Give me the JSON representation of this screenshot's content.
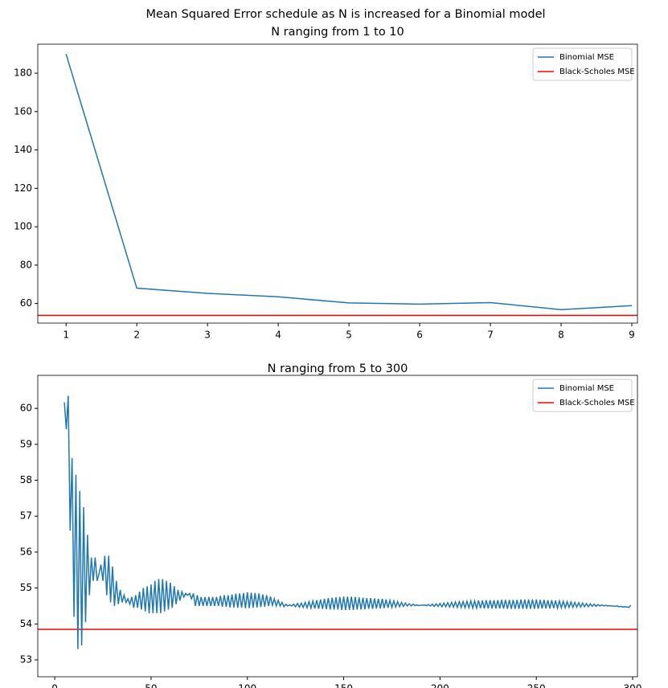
{
  "title": "Mean Squared Error schedule as N is increased for a Binomial model",
  "chart_data": [
    {
      "type": "line",
      "title": "N ranging from 1 to 10",
      "x": [
        1,
        2,
        3,
        4,
        5,
        6,
        7,
        8,
        9
      ],
      "series": [
        {
          "name": "Binomial MSE",
          "color": "#1f77b4",
          "values": [
            190,
            68,
            65.3,
            63.5,
            60.3,
            59.7,
            60.5,
            56.8,
            58.9
          ]
        }
      ],
      "hline": {
        "name": "Black-Scholes MSE",
        "color": "#ff0000",
        "value": 53.85
      },
      "xlim": [
        0.6,
        9.08
      ],
      "ylim": [
        49.8,
        195.1
      ],
      "xticks": [
        1,
        2,
        3,
        4,
        5,
        6,
        7,
        8,
        9
      ],
      "yticks": [
        60,
        80,
        100,
        120,
        140,
        160,
        180
      ],
      "legend": "upper right"
    },
    {
      "type": "line",
      "title": "N ranging from 5 to 300",
      "x": [
        5,
        6,
        7,
        8,
        9,
        10,
        11,
        12,
        13,
        14,
        15,
        16,
        17,
        18,
        19,
        20,
        21,
        22,
        23,
        24,
        25,
        26,
        27,
        28,
        29,
        30,
        31,
        32,
        33,
        34,
        35,
        36,
        37,
        38,
        39,
        40,
        41,
        42,
        43,
        44,
        45,
        46,
        47,
        48,
        49,
        50,
        51,
        52,
        53,
        54,
        55,
        56,
        57,
        58,
        59,
        60,
        61,
        62,
        63,
        64,
        65,
        66,
        67,
        68,
        69,
        70,
        71,
        72,
        73,
        74,
        75,
        76,
        77,
        78,
        79,
        80,
        81,
        82,
        83,
        84,
        85,
        86,
        87,
        88,
        89,
        90,
        91,
        92,
        93,
        94,
        95,
        96,
        97,
        98,
        99,
        100,
        101,
        102,
        103,
        104,
        105,
        106,
        107,
        108,
        109,
        110,
        111,
        112,
        113,
        114,
        115,
        116,
        117,
        118,
        119,
        120,
        121,
        122,
        123,
        124,
        125,
        126,
        127,
        128,
        129,
        130,
        131,
        132,
        133,
        134,
        135,
        136,
        137,
        138,
        139,
        140,
        141,
        142,
        143,
        144,
        145,
        146,
        147,
        148,
        149,
        150,
        151,
        152,
        153,
        154,
        155,
        156,
        157,
        158,
        159,
        160,
        161,
        162,
        163,
        164,
        165,
        166,
        167,
        168,
        169,
        170,
        171,
        172,
        173,
        174,
        175,
        176,
        177,
        178,
        179,
        180,
        181,
        182,
        183,
        184,
        185,
        186,
        187,
        188,
        189,
        190,
        191,
        192,
        193,
        194,
        195,
        196,
        197,
        198,
        199,
        200,
        201,
        202,
        203,
        204,
        205,
        206,
        207,
        208,
        209,
        210,
        211,
        212,
        213,
        214,
        215,
        216,
        217,
        218,
        219,
        220,
        221,
        222,
        223,
        224,
        225,
        226,
        227,
        228,
        229,
        230,
        231,
        232,
        233,
        234,
        235,
        236,
        237,
        238,
        239,
        240,
        241,
        242,
        243,
        244,
        245,
        246,
        247,
        248,
        249,
        250,
        251,
        252,
        253,
        254,
        255,
        256,
        257,
        258,
        259,
        260,
        261,
        262,
        263,
        264,
        265,
        266,
        267,
        268,
        269,
        270,
        271,
        272,
        273,
        274,
        275,
        276,
        277,
        278,
        279,
        280,
        281,
        282,
        283,
        284,
        285,
        286,
        287,
        288,
        289,
        290,
        291,
        292,
        293,
        294,
        295,
        296,
        297,
        298,
        299
      ],
      "series": [
        {
          "name": "Binomial MSE",
          "color": "#1f77b4",
          "values": [
            60.17,
            59.42,
            60.35,
            56.6,
            58.62,
            54.2,
            58.15,
            53.3,
            57.7,
            53.4,
            57.25,
            54.05,
            56.48,
            54.8,
            55.85,
            55.2,
            55.85,
            55.2,
            55.4,
            55.65,
            55.2,
            55.9,
            54.8,
            55.9,
            54.6,
            55.6,
            54.5,
            55.2,
            54.55,
            54.95,
            54.6,
            54.8,
            54.6,
            54.7,
            54.55,
            54.75,
            54.45,
            54.8,
            54.45,
            54.9,
            54.4,
            55.0,
            54.35,
            55.05,
            54.3,
            55.1,
            54.3,
            55.2,
            54.3,
            55.25,
            54.3,
            55.25,
            54.35,
            55.2,
            54.4,
            55.15,
            54.45,
            55.05,
            54.55,
            54.95,
            54.65,
            54.9,
            54.75,
            54.85,
            54.8,
            54.85,
            54.7,
            54.85,
            54.5,
            54.8,
            54.5,
            54.75,
            54.5,
            54.75,
            54.5,
            54.75,
            54.5,
            54.75,
            54.5,
            54.75,
            54.5,
            54.78,
            54.48,
            54.8,
            54.48,
            54.8,
            54.46,
            54.82,
            54.46,
            54.84,
            54.45,
            54.85,
            54.45,
            54.86,
            54.44,
            54.88,
            54.44,
            54.87,
            54.45,
            54.86,
            54.46,
            54.85,
            54.47,
            54.82,
            54.48,
            54.8,
            54.5,
            54.76,
            54.52,
            54.7,
            54.5,
            54.66,
            54.5,
            54.6,
            54.48,
            54.55,
            54.5,
            54.53,
            54.5,
            54.55,
            54.48,
            54.57,
            54.47,
            54.58,
            54.46,
            54.6,
            54.45,
            54.62,
            54.44,
            54.64,
            54.43,
            54.66,
            54.42,
            54.68,
            54.42,
            54.7,
            54.41,
            54.72,
            54.4,
            54.73,
            54.4,
            54.74,
            54.4,
            54.75,
            54.39,
            54.76,
            54.39,
            54.76,
            54.39,
            54.76,
            54.39,
            54.75,
            54.4,
            54.74,
            54.4,
            54.73,
            54.41,
            54.72,
            54.42,
            54.72,
            54.42,
            54.71,
            54.43,
            54.7,
            54.43,
            54.7,
            54.44,
            54.68,
            54.45,
            54.66,
            54.46,
            54.64,
            54.47,
            54.62,
            54.48,
            54.6,
            54.49,
            54.58,
            54.5,
            54.56,
            54.5,
            54.55,
            54.51,
            54.53,
            54.51,
            54.52,
            54.52,
            54.53,
            54.51,
            54.54,
            54.5,
            54.55,
            54.49,
            54.56,
            54.49,
            54.57,
            54.48,
            54.58,
            54.48,
            54.59,
            54.47,
            54.6,
            54.47,
            54.61,
            54.46,
            54.62,
            54.46,
            54.62,
            54.45,
            54.63,
            54.45,
            54.64,
            54.44,
            54.64,
            54.44,
            54.65,
            54.44,
            54.65,
            54.43,
            54.66,
            54.43,
            54.66,
            54.43,
            54.66,
            54.43,
            54.66,
            54.43,
            54.67,
            54.43,
            54.67,
            54.42,
            54.67,
            54.42,
            54.67,
            54.42,
            54.67,
            54.42,
            54.68,
            54.42,
            54.68,
            54.42,
            54.68,
            54.42,
            54.68,
            54.42,
            54.68,
            54.42,
            54.67,
            54.43,
            54.67,
            54.43,
            54.66,
            54.43,
            54.66,
            54.44,
            54.65,
            54.44,
            54.64,
            54.45,
            54.63,
            54.45,
            54.62,
            54.46,
            54.61,
            54.46,
            54.6,
            54.47,
            54.59,
            54.47,
            54.58,
            54.48,
            54.57,
            54.48,
            54.56,
            54.49,
            54.55,
            54.49,
            54.54,
            54.5,
            54.53,
            54.5,
            54.52,
            54.5,
            54.51,
            54.5,
            54.5,
            54.49,
            54.5,
            54.48,
            54.49,
            54.47,
            54.48,
            54.47,
            54.46,
            54.52
          ]
        }
      ],
      "hline": {
        "name": "Black-Scholes MSE",
        "color": "#ff0000",
        "value": 53.85
      },
      "xlim": [
        -8.8,
        302.5
      ],
      "ylim": [
        52.53,
        60.92
      ],
      "xticks": [
        0,
        50,
        100,
        150,
        200,
        250,
        300
      ],
      "yticks": [
        53,
        54,
        55,
        56,
        57,
        58,
        59,
        60
      ],
      "legend": "upper right"
    }
  ]
}
